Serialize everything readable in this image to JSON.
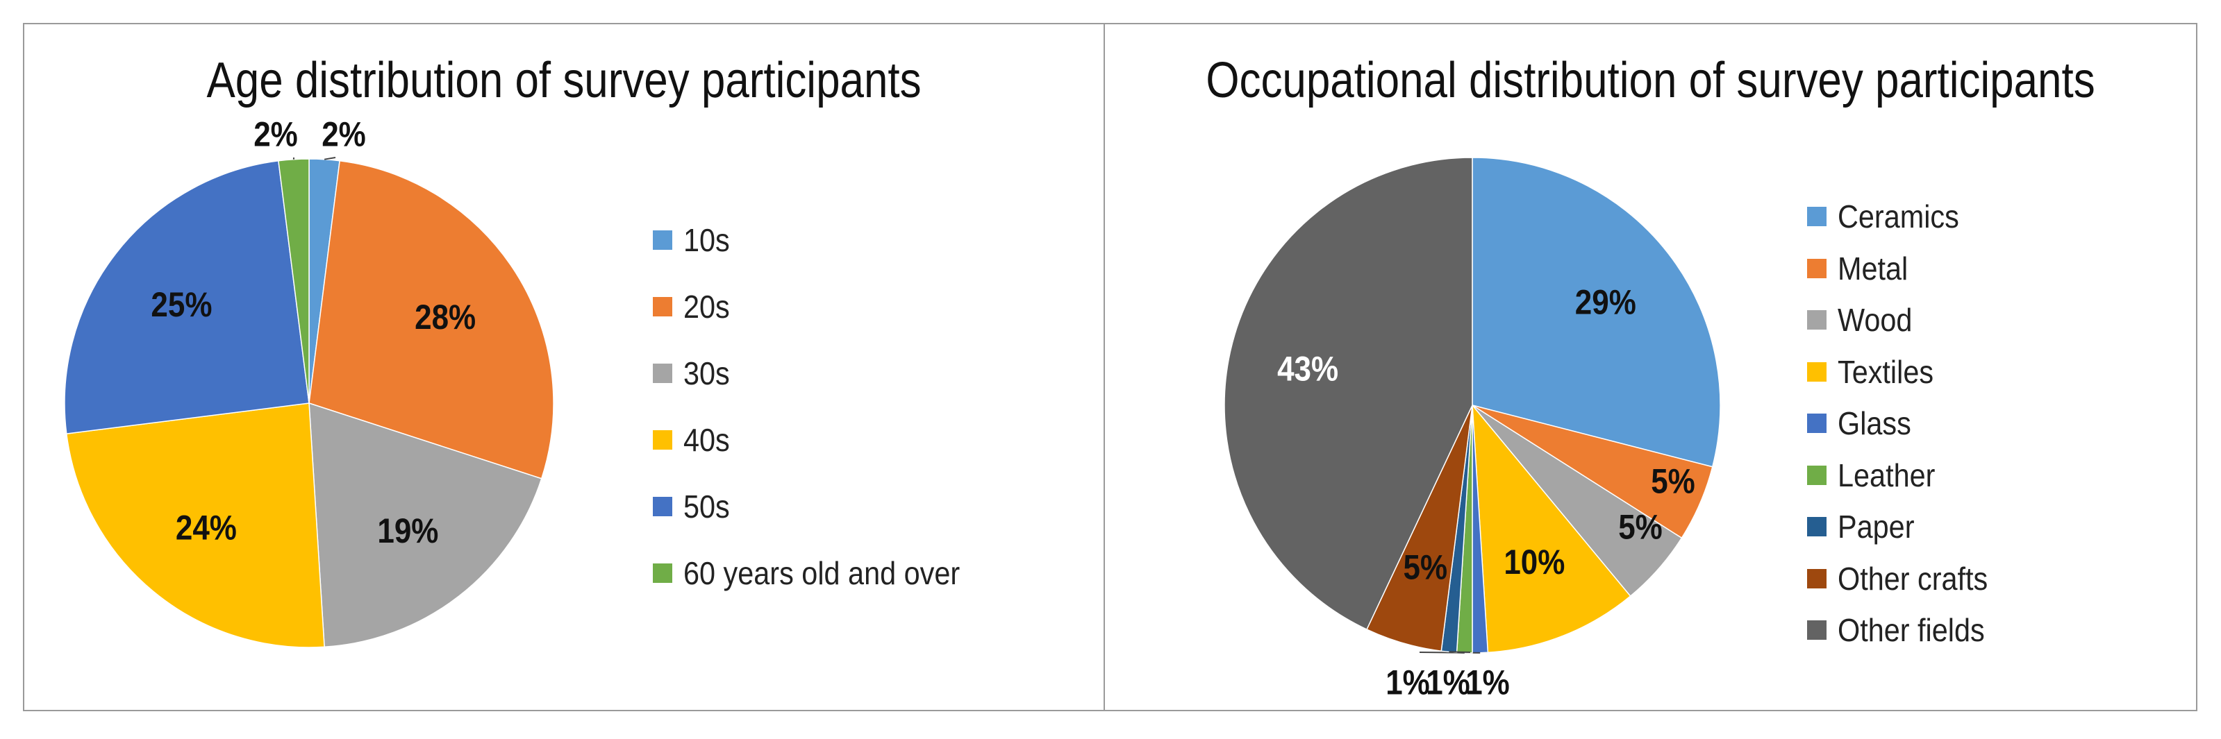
{
  "chart_data": [
    {
      "type": "pie",
      "title": "Age distribution of survey participants",
      "categories": [
        "10s",
        "20s",
        "30s",
        "40s",
        "50s",
        "60 years old and over"
      ],
      "values": [
        2,
        28,
        19,
        24,
        25,
        2
      ],
      "labels": [
        "2%",
        "28%",
        "19%",
        "24%",
        "25%",
        "2%"
      ],
      "colors": [
        "#5B9BD5",
        "#ED7D31",
        "#A5A5A5",
        "#FFC000",
        "#4472C4",
        "#70AD47"
      ],
      "legend": "right"
    },
    {
      "type": "pie",
      "title": "Occupational distribution of survey participants",
      "categories": [
        "Ceramics",
        "Metal",
        "Wood",
        "Textiles",
        "Glass",
        "Leather",
        "Paper",
        "Other crafts",
        "Other fields"
      ],
      "values": [
        29,
        5,
        5,
        10,
        1,
        1,
        1,
        5,
        43
      ],
      "labels": [
        "29%",
        "5%",
        "5%",
        "10%",
        "1%",
        "1%",
        "1%",
        "5%",
        "43%"
      ],
      "colors": [
        "#5B9BD5",
        "#ED7D31",
        "#A5A5A5",
        "#FFC000",
        "#4472C4",
        "#70AD47",
        "#255E91",
        "#9E480E",
        "#636363"
      ],
      "legend": "right"
    }
  ]
}
